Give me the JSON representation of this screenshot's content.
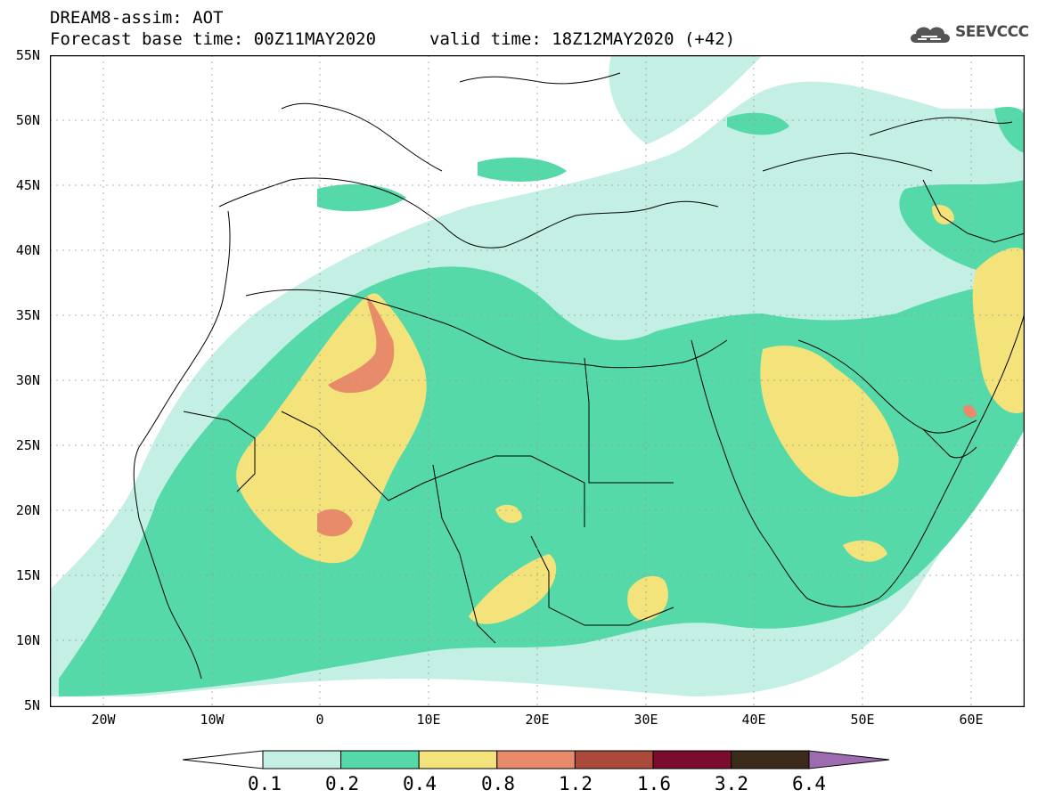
{
  "header": {
    "title_line1": "DREAM8-assim: AOT",
    "title_line2": "Forecast base time: 00Z11MAY2020",
    "valid_time": "valid time: 18Z12MAY2020 (+42)",
    "logo_text": "SEEVCCC"
  },
  "axes": {
    "lat_labels": [
      "55N",
      "50N",
      "45N",
      "40N",
      "35N",
      "30N",
      "25N",
      "20N",
      "15N",
      "10N",
      "5N"
    ],
    "lon_labels": [
      "20W",
      "10W",
      "0",
      "10E",
      "20E",
      "30E",
      "40E",
      "50E",
      "60E"
    ]
  },
  "colorbar": {
    "labels": [
      "0.1",
      "0.2",
      "0.4",
      "0.8",
      "1.2",
      "1.6",
      "3.2",
      "6.4"
    ],
    "colors": [
      "#c3efe4",
      "#55d9a9",
      "#f4e27a",
      "#e88b6a",
      "#aa4a3a",
      "#7a0c2e",
      "#3a2a1a",
      "#9c6bb0"
    ]
  },
  "map": {
    "field": "AOT",
    "lat_range": [
      5,
      55
    ],
    "lon_range": [
      -25,
      65
    ]
  }
}
